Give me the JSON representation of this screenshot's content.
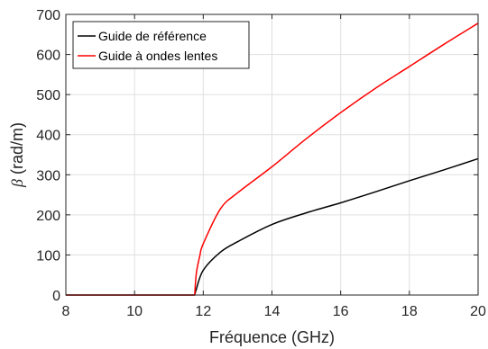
{
  "chart_data": {
    "type": "line",
    "xlabel": "Fréquence (GHz)",
    "ylabel_symbol": "β",
    "ylabel_unit": " (rad/m)",
    "xlim": [
      8,
      20
    ],
    "ylim": [
      0,
      700
    ],
    "xticks": [
      8,
      10,
      12,
      14,
      16,
      18,
      20
    ],
    "yticks": [
      0,
      100,
      200,
      300,
      400,
      500,
      600,
      700
    ],
    "grid": true,
    "legend_position": "top-left",
    "series": [
      {
        "name": "Guide de référence",
        "color": "#000000",
        "x": [
          8,
          11.75,
          11.8,
          12,
          12.5,
          13,
          14,
          15,
          16,
          17,
          18,
          19,
          20
        ],
        "y": [
          0,
          0,
          15,
          62,
          107,
          133,
          176,
          205,
          230,
          257,
          285,
          312,
          340
        ]
      },
      {
        "name": "Guide à ondes lentes",
        "color": "#ff0000",
        "x": [
          8,
          11.75,
          11.8,
          11.9,
          12,
          12.5,
          13,
          14,
          15,
          16,
          17,
          18,
          19,
          20
        ],
        "y": [
          0,
          0,
          55,
          98,
          128,
          215,
          255,
          320,
          390,
          455,
          515,
          570,
          625,
          678
        ]
      }
    ]
  }
}
